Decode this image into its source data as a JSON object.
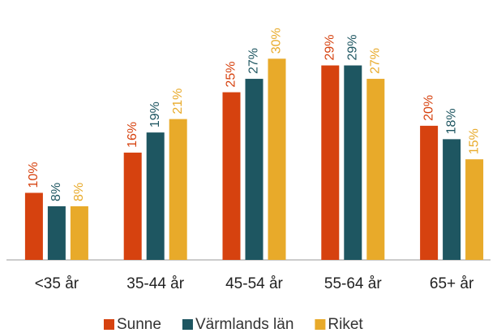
{
  "chart_data": {
    "type": "bar",
    "categories": [
      "<35 år",
      "35-44 år",
      "45-54 år",
      "55-64 år",
      "65+ år"
    ],
    "series": [
      {
        "name": "Sunne",
        "color": "#d6420f",
        "values": [
          10,
          16,
          25,
          29,
          20
        ],
        "value_labels": [
          "10%",
          "16%",
          "25%",
          "29%",
          "20%"
        ]
      },
      {
        "name": "Värmlands län",
        "color": "#1e5661",
        "values": [
          8,
          19,
          27,
          29,
          18
        ],
        "value_labels": [
          "8%",
          "19%",
          "27%",
          "29%",
          "18%"
        ]
      },
      {
        "name": "Riket",
        "color": "#e8aa2a",
        "values": [
          8,
          21,
          30,
          27,
          15
        ],
        "value_labels": [
          "8%",
          "21%",
          "30%",
          "27%",
          "15%"
        ]
      }
    ],
    "ylim": [
      0,
      35
    ]
  }
}
